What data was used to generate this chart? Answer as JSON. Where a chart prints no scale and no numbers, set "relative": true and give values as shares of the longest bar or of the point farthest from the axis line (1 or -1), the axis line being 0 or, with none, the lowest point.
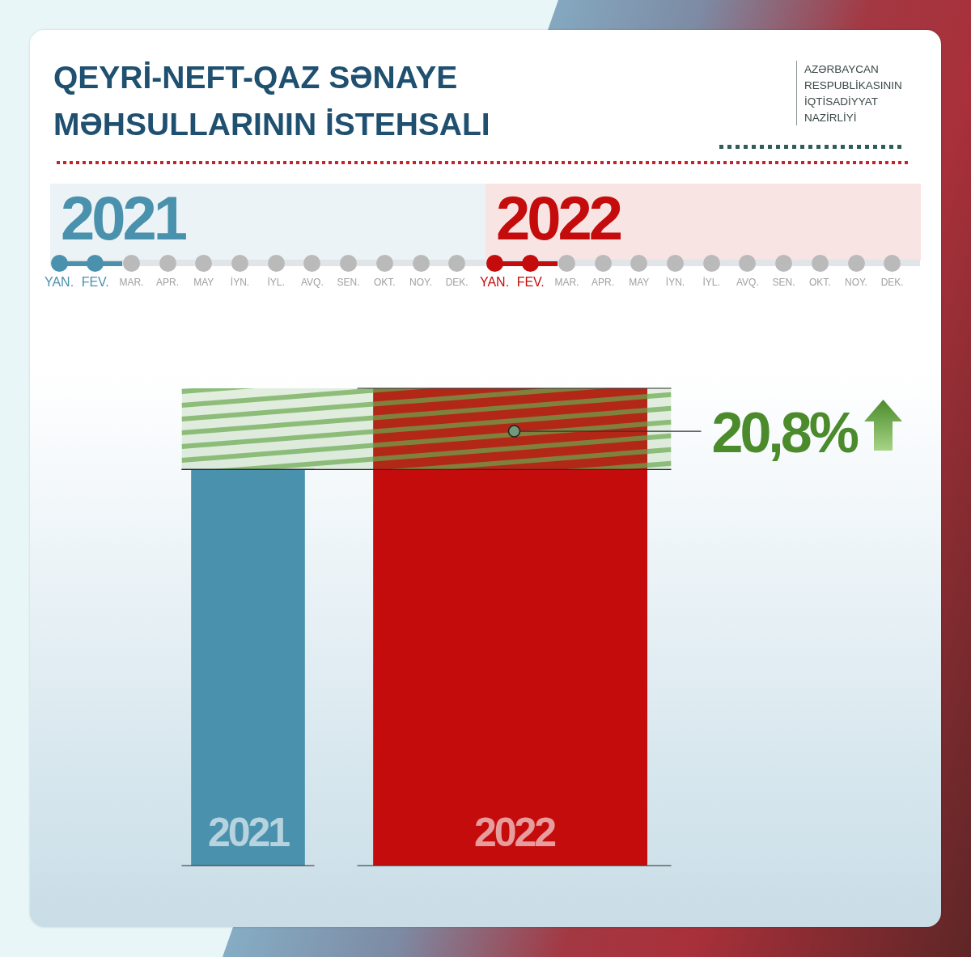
{
  "chart_data": [
    {
      "type": "other",
      "title": "QEYRİ-NEFT-QAZ SƏNAYE MƏHSULLARININ İSTEHSALI",
      "annotations": [
        "AZƏRBAYCAN RESPUBLİKASININ İQTİSADİYYAT NAZİRLİYİ"
      ]
    },
    {
      "type": "other",
      "categories": [
        "YAN.",
        "FEV.",
        "MAR.",
        "APR.",
        "MAY",
        "İYN.",
        "İYL.",
        "AVQ.",
        "SEN.",
        "OKT.",
        "NOY.",
        "DEK.",
        "YAN.",
        "FEV.",
        "MAR.",
        "APR.",
        "MAY",
        "İYN.",
        "İYL.",
        "AVQ.",
        "SEN.",
        "OKT.",
        "NOY.",
        "DEK."
      ],
      "colors": [
        "#4a91ad",
        "#4a91ad",
        "#bababa",
        "#bababa",
        "#bababa",
        "#bababa",
        "#bababa",
        "#bababa",
        "#bababa",
        "#bababa",
        "#bababa",
        "#bababa",
        "#c40c0c",
        "#c40c0c",
        "#bababa",
        "#bababa",
        "#bababa",
        "#bababa",
        "#bababa",
        "#bababa",
        "#bababa",
        "#bababa",
        "#bababa",
        "#bababa"
      ],
      "annotations": [
        "2021",
        "2022"
      ]
    },
    {
      "type": "bar",
      "categories": [
        "2021",
        "2022"
      ],
      "values": [
        0.83,
        1
      ],
      "colors": [
        "#4a91ad",
        "#c40c0c"
      ],
      "relative": true,
      "bands": [
        {
          "axis": "y",
          "from": 0.83,
          "to": 1,
          "color": "#6aa84f"
        }
      ],
      "ref_lines": [
        {
          "axis": "y",
          "value": 0.83,
          "color": "#2b2b2b"
        }
      ],
      "annotations": [
        {
          "text": "20,8%",
          "x": "2022",
          "y": 0.91
        }
      ]
    }
  ]
}
